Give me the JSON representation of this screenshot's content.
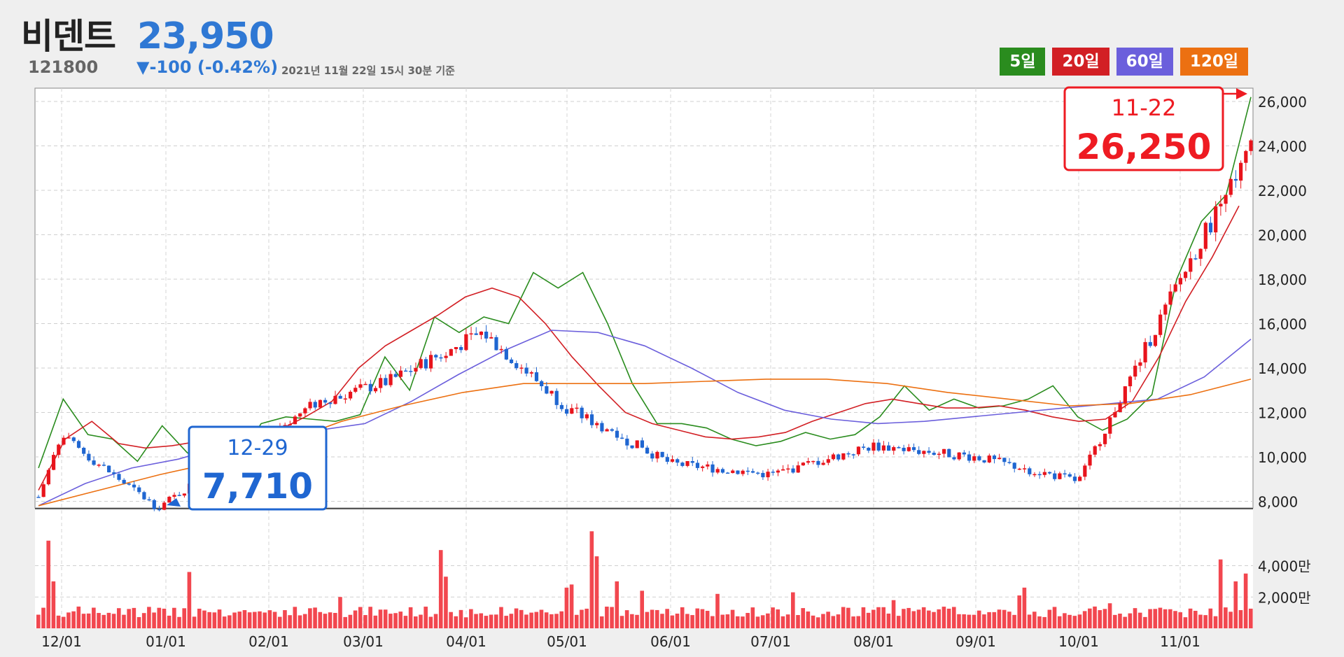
{
  "header": {
    "name": "비덴트",
    "price": "23,950",
    "code": "121800",
    "change": "▼-100 (-0.42%)",
    "timestamp": "2021년 11월 22일 15시 30분 기준"
  },
  "legend": [
    {
      "label": "5일",
      "color": "#2a8c1e"
    },
    {
      "label": "20일",
      "color": "#d21f24"
    },
    {
      "label": "60일",
      "color": "#6b5fdc"
    },
    {
      "label": "120일",
      "color": "#ec7011"
    }
  ],
  "colors": {
    "up": "#e8141c",
    "down": "#1f66d1",
    "volume": "#f2474f"
  },
  "callouts": {
    "high": {
      "date": "11-22",
      "value": "26,250"
    },
    "low": {
      "date": "12-29",
      "value": "7,710"
    }
  },
  "chart_data": {
    "type": "candlestick",
    "period": "2020-11-27 to 2021-11-22, daily",
    "price_axis": {
      "ticks": [
        "8,000",
        "10,000",
        "12,000",
        "14,000",
        "16,000",
        "18,000",
        "20,000",
        "22,000",
        "24,000",
        "26,000"
      ],
      "ylim": [
        7700,
        26600
      ]
    },
    "volume_axis": {
      "ticks": [
        "2,000만",
        "4,000만"
      ],
      "unit": "만"
    },
    "x_tick_labels": [
      "12/01",
      "01/01",
      "02/01",
      "03/01",
      "04/01",
      "05/01",
      "06/01",
      "07/01",
      "08/01",
      "09/01",
      "10/01",
      "11/01"
    ],
    "grid": true,
    "key_points": [
      {
        "month": "12/01",
        "price": 10900
      },
      {
        "month": "12/29",
        "price": 7710,
        "label": "low"
      },
      {
        "month": "02/20",
        "price": 12500
      },
      {
        "month": "03/10",
        "price": 14000
      },
      {
        "month": "04/10",
        "price": 15700
      },
      {
        "month": "05/01",
        "price": 12200
      },
      {
        "month": "06/01",
        "price": 9700
      },
      {
        "month": "07/01",
        "price": 9200
      },
      {
        "month": "08/01",
        "price": 10500
      },
      {
        "month": "09/01",
        "price": 10000
      },
      {
        "month": "10/01",
        "price": 8900
      },
      {
        "month": "11/01",
        "price": 18000
      },
      {
        "month": "11/22",
        "price": 23950,
        "high": 26250
      }
    ],
    "series": [
      {
        "name": "5일",
        "values": [
          9500,
          12600,
          11000,
          10800,
          9800,
          11400,
          10200,
          9400,
          9800,
          11500,
          11800,
          11700,
          11600,
          11900,
          14500,
          13000,
          16300,
          15600,
          16300,
          16000,
          18300,
          17600,
          18300,
          16000,
          13300,
          11500,
          11500,
          11300,
          10800,
          10500,
          10700,
          11100,
          10800,
          11000,
          11800,
          13200,
          12100,
          12600,
          12200,
          12300,
          12600,
          13200,
          11800,
          11200,
          11700,
          12800,
          18000,
          20600,
          21800,
          26200
        ]
      },
      {
        "name": "20일",
        "values": [
          8500,
          10800,
          11600,
          10600,
          10400,
          10500,
          10700,
          10900,
          11100,
          11200,
          11800,
          12500,
          14000,
          15000,
          15700,
          16400,
          17200,
          17600,
          17200,
          16000,
          14500,
          13200,
          12000,
          11500,
          11200,
          10900,
          10800,
          10900,
          11100,
          11600,
          12000,
          12400,
          12600,
          12400,
          12200,
          12200,
          12300,
          12100,
          11800,
          11600,
          11700,
          12500,
          14500,
          17000,
          19000,
          21300
        ]
      },
      {
        "name": "60일",
        "values": [
          7800,
          8800,
          9500,
          9900,
          10500,
          11000,
          11200,
          11500,
          12500,
          13700,
          14800,
          15700,
          15600,
          15000,
          14000,
          12900,
          12100,
          11700,
          11500,
          11600,
          11800,
          12000,
          12200,
          12400,
          12600,
          13600,
          15300
        ]
      },
      {
        "name": "120일",
        "values": [
          7800,
          8500,
          9200,
          9800,
          10600,
          11600,
          12300,
          12900,
          13300,
          13300,
          13300,
          13400,
          13500,
          13500,
          13300,
          12900,
          12600,
          12300,
          12400,
          12800,
          13500
        ]
      }
    ]
  }
}
